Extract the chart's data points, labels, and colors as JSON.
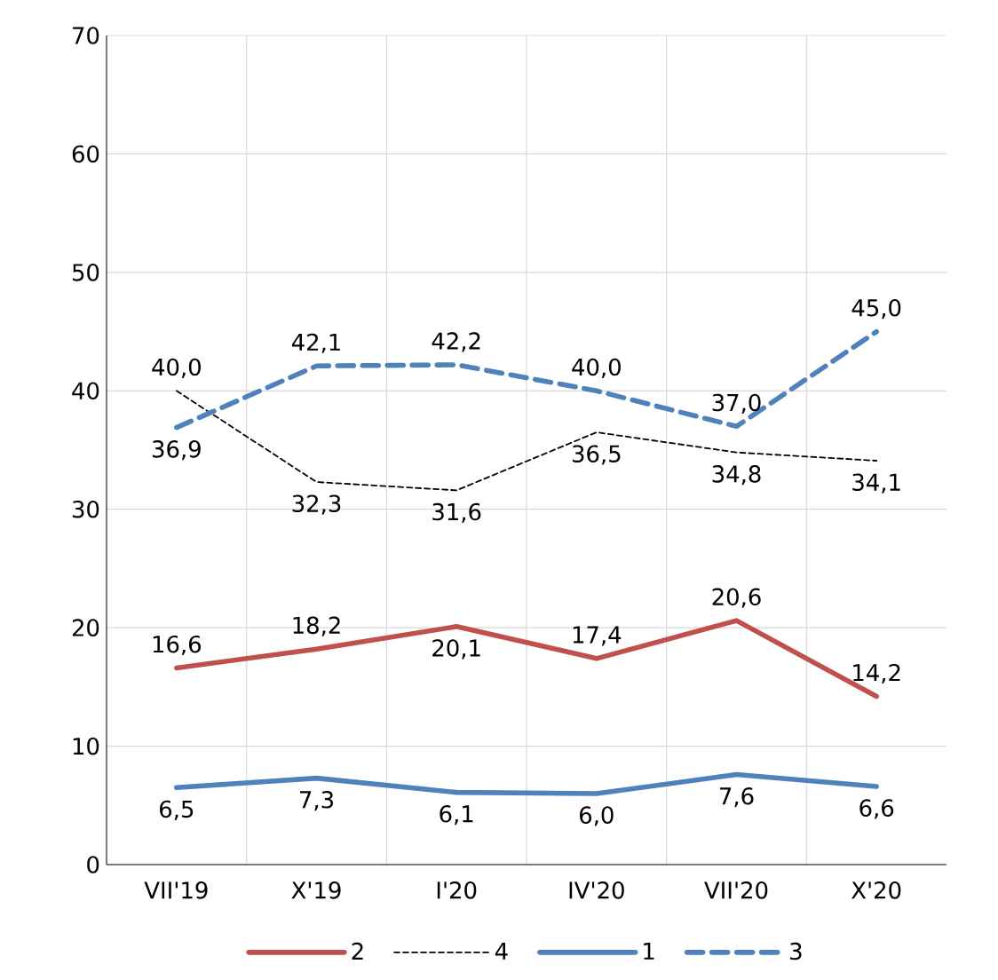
{
  "chart_data": {
    "type": "line",
    "categories": [
      "VII'19",
      "X'19",
      "I'20",
      "IV'20",
      "VII'20",
      "X'20"
    ],
    "series": [
      {
        "name": "2",
        "color": "#c0504d",
        "line_style": "solid",
        "values": [
          16.6,
          18.2,
          20.1,
          17.4,
          20.6,
          14.2
        ],
        "value_labels": [
          "16,6",
          "18,2",
          "20,1",
          "17,4",
          "20,6",
          "14,2"
        ]
      },
      {
        "name": "4",
        "color": "#000000",
        "line_style": "dashed",
        "values": [
          40.0,
          32.3,
          31.6,
          36.5,
          34.8,
          34.1
        ],
        "value_labels": [
          "40,0",
          "32,3",
          "31,6",
          "36,5",
          "34,8",
          "34,1"
        ]
      },
      {
        "name": "1",
        "color": "#4f81bd",
        "line_style": "solid",
        "values": [
          6.5,
          7.3,
          6.1,
          6.0,
          7.6,
          6.6
        ],
        "value_labels": [
          "6,5",
          "7,3",
          "6,1",
          "6,0",
          "7,6",
          "6,6"
        ]
      },
      {
        "name": "3",
        "color": "#4f81bd",
        "line_style": "dashed",
        "values": [
          36.9,
          42.1,
          42.2,
          40.0,
          37.0,
          45.0
        ],
        "value_labels": [
          "36,9",
          "42,1",
          "42,2",
          "40,0",
          "37,0",
          "45,0"
        ]
      }
    ],
    "ylim": [
      0,
      70
    ],
    "yticks": [
      0,
      10,
      20,
      30,
      40,
      50,
      60,
      70
    ],
    "grid": true,
    "legend": "bottom"
  }
}
